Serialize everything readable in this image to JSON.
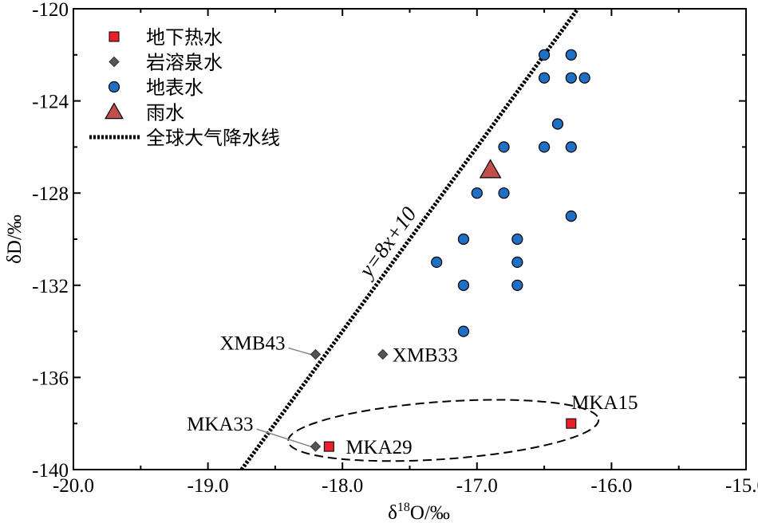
{
  "chart_data": {
    "type": "scatter",
    "title": "",
    "xlabel": "δ18O/‰",
    "ylabel": "δD/‰",
    "xlim": [
      -20.0,
      -15.0
    ],
    "ylim": [
      -140,
      -120
    ],
    "x_ticks": [
      -20.0,
      -19.0,
      -18.0,
      -17.0,
      -16.0,
      -15.0
    ],
    "x_tick_labels": [
      "-20.0",
      "-19.0",
      "-18.0",
      "-17.0",
      "-16.0",
      "-15.0"
    ],
    "y_ticks": [
      -140,
      -136,
      -132,
      -128,
      -124,
      -120
    ],
    "y_tick_labels": [
      "-140",
      "-136",
      "-132",
      "-128",
      "-124",
      "-120"
    ],
    "legend_position": "top-left",
    "series": [
      {
        "name": "地下热水",
        "marker": "square",
        "color": "#e8202a",
        "points": [
          {
            "x": -18.1,
            "y": -139.0,
            "label": "MKA29"
          },
          {
            "x": -16.3,
            "y": -138.0,
            "label": "MKA15"
          }
        ]
      },
      {
        "name": "岩溶泉水",
        "marker": "diamond",
        "color": "#555555",
        "points": [
          {
            "x": -18.2,
            "y": -135.0,
            "label": "XMB43"
          },
          {
            "x": -17.7,
            "y": -135.0,
            "label": "XMB33"
          },
          {
            "x": -18.2,
            "y": -139.0,
            "label": "MKA33"
          }
        ]
      },
      {
        "name": "地表水",
        "marker": "circle",
        "color": "#1f6fc5",
        "points": [
          {
            "x": -16.5,
            "y": -122
          },
          {
            "x": -16.3,
            "y": -122
          },
          {
            "x": -16.5,
            "y": -123
          },
          {
            "x": -16.3,
            "y": -123
          },
          {
            "x": -16.2,
            "y": -123
          },
          {
            "x": -16.4,
            "y": -125
          },
          {
            "x": -16.8,
            "y": -126
          },
          {
            "x": -16.5,
            "y": -126
          },
          {
            "x": -16.3,
            "y": -126
          },
          {
            "x": -17.0,
            "y": -128
          },
          {
            "x": -16.8,
            "y": -128
          },
          {
            "x": -16.3,
            "y": -129
          },
          {
            "x": -17.1,
            "y": -130
          },
          {
            "x": -16.7,
            "y": -130
          },
          {
            "x": -17.3,
            "y": -131
          },
          {
            "x": -16.7,
            "y": -131
          },
          {
            "x": -17.1,
            "y": -132
          },
          {
            "x": -16.7,
            "y": -132
          },
          {
            "x": -17.1,
            "y": -134
          }
        ]
      },
      {
        "name": "雨水",
        "marker": "triangle",
        "color": "#c0504d",
        "points": [
          {
            "x": -16.9,
            "y": -127.0
          }
        ]
      }
    ],
    "reference_line": {
      "name": "全球大气降水线",
      "equation": "y=8x+10",
      "slope": 8,
      "intercept": 10,
      "style": "dotted-thick"
    },
    "ellipse": {
      "center_x": -17.25,
      "center_y": -138.3,
      "note": "dashed outline enclosing MKA15 and MKA29"
    }
  }
}
